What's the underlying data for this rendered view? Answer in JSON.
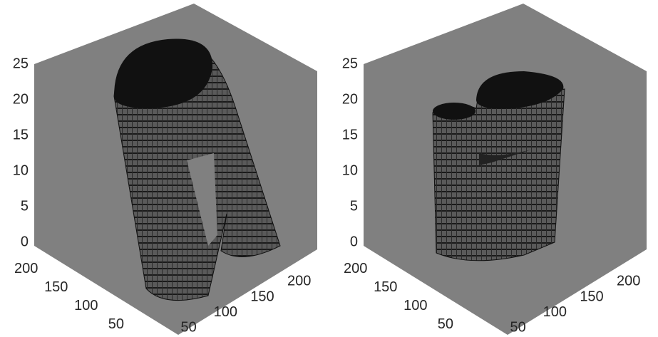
{
  "chart_data": [
    {
      "type": "surface3d",
      "xlim": [
        0,
        240
      ],
      "ylim": [
        0,
        240
      ],
      "zlim": [
        0,
        25
      ],
      "xticks": [
        50,
        100,
        150,
        200
      ],
      "yticks": [
        50,
        100,
        150,
        200
      ],
      "zticks": [
        0,
        5,
        10,
        15,
        20,
        25
      ]
    },
    {
      "type": "surface3d",
      "xlim": [
        0,
        240
      ],
      "ylim": [
        0,
        240
      ],
      "zlim": [
        0,
        25
      ],
      "xticks": [
        50,
        100,
        150,
        200
      ],
      "yticks": [
        50,
        100,
        150,
        200
      ],
      "zticks": [
        0,
        5,
        10,
        15,
        20,
        25
      ]
    }
  ]
}
